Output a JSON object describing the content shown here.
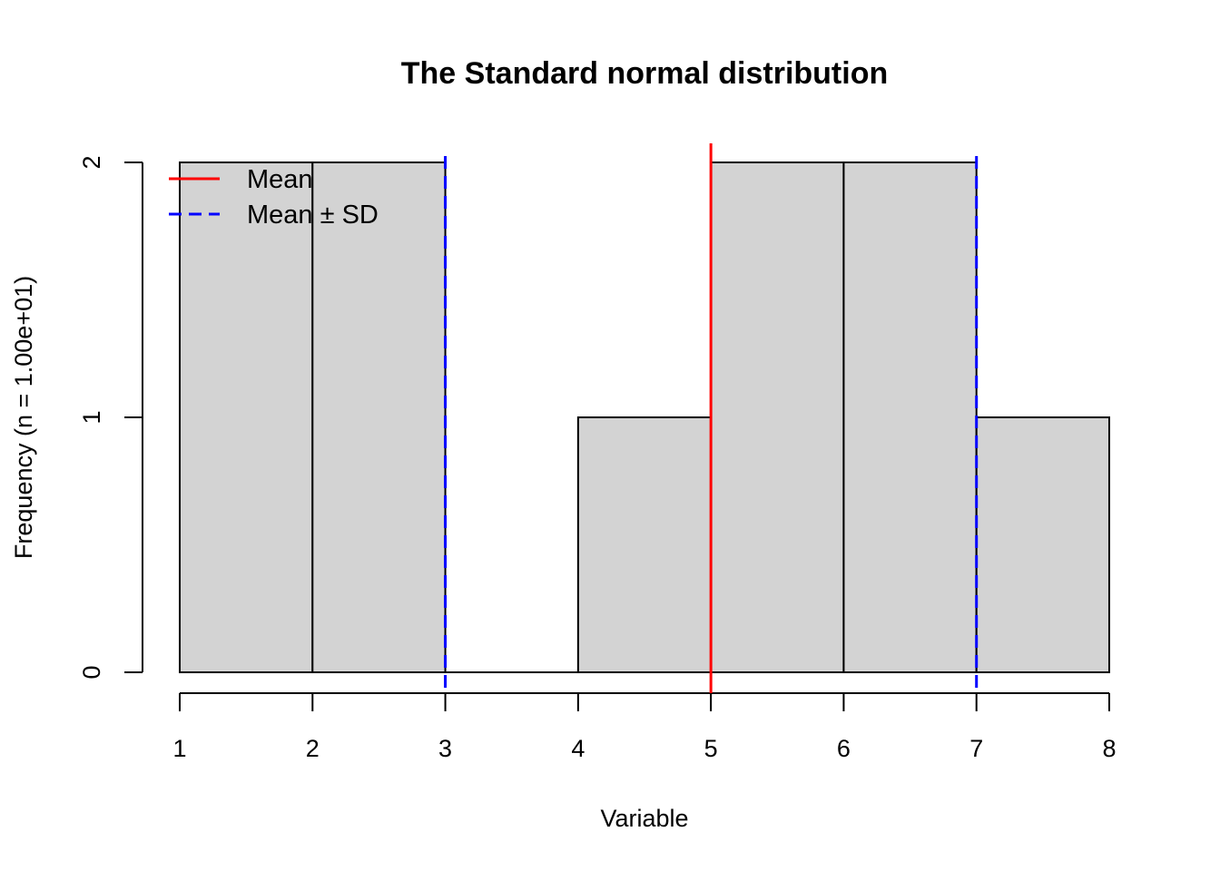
{
  "chart_data": {
    "type": "bar",
    "title": "The Standard normal distribution",
    "xlabel": "Variable",
    "ylabel": "Frequency (n = 1.00e+01)",
    "bins": [
      {
        "from": 1,
        "to": 2,
        "count": 2
      },
      {
        "from": 2,
        "to": 3,
        "count": 2
      },
      {
        "from": 3,
        "to": 4,
        "count": 0
      },
      {
        "from": 4,
        "to": 5,
        "count": 1
      },
      {
        "from": 5,
        "to": 6,
        "count": 2
      },
      {
        "from": 6,
        "to": 7,
        "count": 2
      },
      {
        "from": 7,
        "to": 8,
        "count": 1
      }
    ],
    "x_ticks": [
      1,
      2,
      3,
      4,
      5,
      6,
      7,
      8
    ],
    "y_ticks": [
      0,
      1,
      2
    ],
    "xlim": [
      1,
      8
    ],
    "ylim": [
      0,
      2
    ],
    "mean": 5,
    "sd_lines": [
      3,
      7
    ],
    "grid": false,
    "legend": {
      "placement": "top-left",
      "entries": [
        {
          "label": "Mean",
          "color": "#ff0000",
          "style": "solid"
        },
        {
          "label": "Mean ± SD",
          "color": "#0000ff",
          "style": "dashed"
        }
      ]
    },
    "colors": {
      "bar_fill": "#d3d3d3",
      "bar_stroke": "#000000",
      "mean_line": "#ff0000",
      "sd_line": "#0000ff"
    }
  }
}
